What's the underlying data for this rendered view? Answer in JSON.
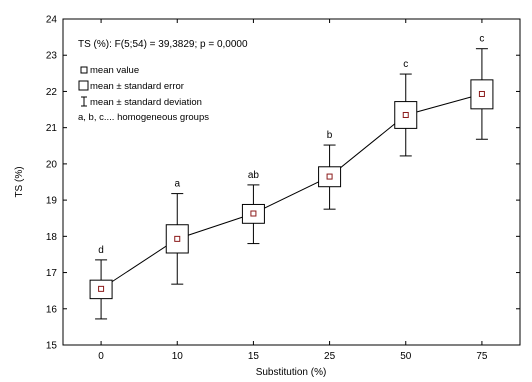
{
  "chart_data": {
    "type": "boxplot",
    "title": "TS (%):   F(5;54) = 39,3829; p = 0,0000",
    "xlabel": "Substitution (%)",
    "ylabel": "TS (%)",
    "ylim": [
      15,
      24
    ],
    "yticks": [
      15,
      16,
      17,
      18,
      19,
      20,
      21,
      22,
      23,
      24
    ],
    "grid": false,
    "legend_position": "top-left",
    "legend": {
      "mean": "mean value",
      "se": "mean ± standard error",
      "sd": "mean ± standard deviation",
      "groups": "a, b, c.... homogeneous groups"
    },
    "categories": [
      "0",
      "10",
      "15",
      "25",
      "50",
      "75"
    ],
    "series": [
      {
        "mean": [
          16.55,
          17.93,
          18.63,
          19.65,
          21.35,
          21.93
        ],
        "se_low": [
          16.28,
          17.54,
          18.36,
          19.37,
          20.98,
          21.52
        ],
        "se_high": [
          16.79,
          18.32,
          18.88,
          19.92,
          21.72,
          22.32
        ],
        "sd_low": [
          15.72,
          16.68,
          17.8,
          18.75,
          20.22,
          20.68
        ],
        "sd_high": [
          17.35,
          19.18,
          19.42,
          20.52,
          22.48,
          23.18
        ],
        "group_labels": [
          "d",
          "a",
          "ab",
          "b",
          "c",
          "c"
        ]
      }
    ],
    "colors": {
      "mean_marker": "#8b1a1a",
      "line": "#000000",
      "box_fill": "#ffffff"
    }
  }
}
